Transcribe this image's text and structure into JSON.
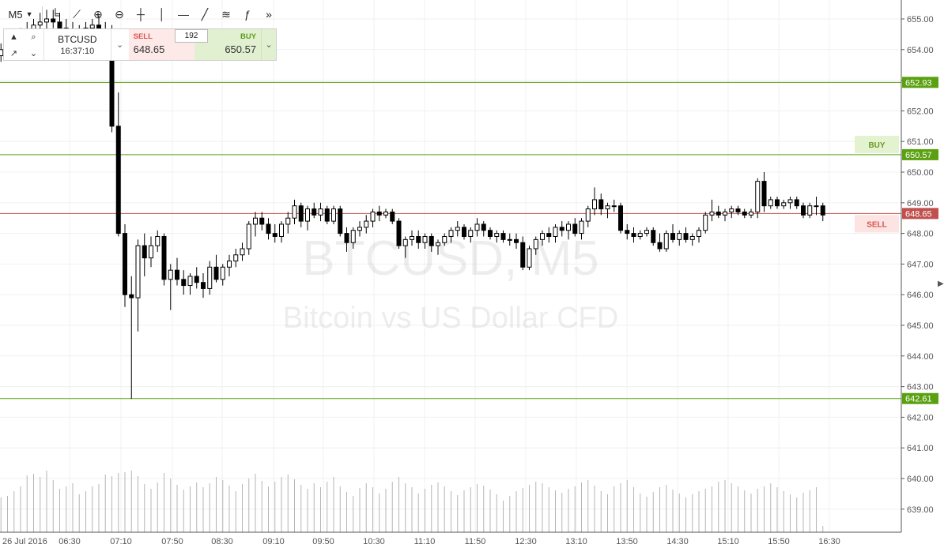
{
  "toolbar": {
    "interval": "M5",
    "tools": [
      {
        "name": "bar-style-icon",
        "glyph": "╘"
      },
      {
        "name": "indicators-icon",
        "glyph": "⟋"
      },
      {
        "name": "zoom-in-icon",
        "glyph": "⊕"
      },
      {
        "name": "zoom-out-icon",
        "glyph": "⊖"
      },
      {
        "name": "crosshair-icon",
        "glyph": "┼"
      },
      {
        "name": "vertical-line-icon",
        "glyph": "│"
      },
      {
        "name": "horizontal-line-icon",
        "glyph": "—"
      },
      {
        "name": "trend-line-icon",
        "glyph": "╱"
      },
      {
        "name": "fibonacci-icon",
        "glyph": "≋"
      },
      {
        "name": "function-icon",
        "glyph": "ƒ"
      },
      {
        "name": "fast-forward-icon",
        "glyph": "»"
      }
    ]
  },
  "trade_panel": {
    "symbol": "BTCUSD",
    "time": "16:37:10",
    "sell_label": "SELL",
    "sell_price": "648.65",
    "buy_label": "BUY",
    "buy_price": "650.57",
    "quantity": "192"
  },
  "watermark": {
    "line1": "BTCUSD, M5",
    "line2": "Bitcoin vs US Dollar CFD"
  },
  "chart_data": {
    "type": "candlestick",
    "symbol": "BTCUSD",
    "timeframe": "M5",
    "ylim": [
      638.6,
      655.4
    ],
    "y_ticks": [
      "655.00",
      "654.00",
      "653.00",
      "652.00",
      "651.00",
      "650.00",
      "649.00",
      "648.00",
      "647.00",
      "646.00",
      "645.00",
      "644.00",
      "643.00",
      "642.00",
      "641.00",
      "640.00",
      "639.00"
    ],
    "x_tick_labels": [
      "26 Jul 2016",
      "06:30",
      "07:10",
      "07:50",
      "08:30",
      "09:10",
      "09:50",
      "10:30",
      "11:10",
      "11:50",
      "12:30",
      "13:10",
      "13:50",
      "14:30",
      "15:10",
      "15:50",
      "16:30"
    ],
    "horizontal_lines": [
      {
        "price": 652.93,
        "label": "652.93",
        "color": "#5aa010"
      },
      {
        "price": 650.57,
        "label": "650.57",
        "color": "#5aa010",
        "tag": "BUY"
      },
      {
        "price": 648.65,
        "label": "648.65",
        "color": "#c0504d",
        "tag": "SELL"
      },
      {
        "price": 642.61,
        "label": "642.61",
        "color": "#5aa010"
      }
    ],
    "candles": [
      [
        654.8,
        655.1,
        653.9,
        654.2
      ],
      [
        654.2,
        654.5,
        653.5,
        653.8
      ],
      [
        653.8,
        654.1,
        653.3,
        653.5
      ],
      [
        653.5,
        653.9,
        653.1,
        653.6
      ],
      [
        653.6,
        654.0,
        653.4,
        653.8
      ],
      [
        653.8,
        654.2,
        653.6,
        654.0
      ],
      [
        654.0,
        654.4,
        653.8,
        654.1
      ],
      [
        654.1,
        654.5,
        653.9,
        654.3
      ],
      [
        654.3,
        654.7,
        654.1,
        654.5
      ],
      [
        654.5,
        654.9,
        654.2,
        654.6
      ],
      [
        654.6,
        655.0,
        654.3,
        654.8
      ],
      [
        654.8,
        655.2,
        654.4,
        654.9
      ],
      [
        654.9,
        655.3,
        654.6,
        655.0
      ],
      [
        655.0,
        655.3,
        654.7,
        654.9
      ],
      [
        654.9,
        655.2,
        654.5,
        654.7
      ],
      [
        654.7,
        655.0,
        654.3,
        654.6
      ],
      [
        654.6,
        654.9,
        654.2,
        654.4
      ],
      [
        654.4,
        654.8,
        654.1,
        654.5
      ],
      [
        654.5,
        654.9,
        654.2,
        654.7
      ],
      [
        654.7,
        655.0,
        654.4,
        654.8
      ],
      [
        654.8,
        655.1,
        654.4,
        654.6
      ],
      [
        654.6,
        654.9,
        654.0,
        654.3
      ],
      [
        654.3,
        654.8,
        651.3,
        651.5
      ],
      [
        651.5,
        652.6,
        647.9,
        648.0
      ],
      [
        648.0,
        648.3,
        645.6,
        646.0
      ],
      [
        646.0,
        646.6,
        642.6,
        645.9
      ],
      [
        645.9,
        647.8,
        644.8,
        647.6
      ],
      [
        647.6,
        648.0,
        646.6,
        647.2
      ],
      [
        647.2,
        647.9,
        646.9,
        647.6
      ],
      [
        647.6,
        648.1,
        647.4,
        647.9
      ],
      [
        647.9,
        648.0,
        646.3,
        646.5
      ],
      [
        646.5,
        647.0,
        645.5,
        646.8
      ],
      [
        646.8,
        647.2,
        646.3,
        646.5
      ],
      [
        646.5,
        646.8,
        646.0,
        646.3
      ],
      [
        646.3,
        646.7,
        646.0,
        646.6
      ],
      [
        646.6,
        646.9,
        646.2,
        646.4
      ],
      [
        646.4,
        646.7,
        645.9,
        646.2
      ],
      [
        646.2,
        647.1,
        646.0,
        646.9
      ],
      [
        646.9,
        647.3,
        646.4,
        646.5
      ],
      [
        646.5,
        647.0,
        646.3,
        646.9
      ],
      [
        646.9,
        647.3,
        646.6,
        647.1
      ],
      [
        647.1,
        647.5,
        646.9,
        647.3
      ],
      [
        647.3,
        647.7,
        647.1,
        647.5
      ],
      [
        647.5,
        648.4,
        647.3,
        648.3
      ],
      [
        648.3,
        648.7,
        647.9,
        648.5
      ],
      [
        648.5,
        648.7,
        648.1,
        648.3
      ],
      [
        648.3,
        648.5,
        647.8,
        648.0
      ],
      [
        648.0,
        648.3,
        647.7,
        647.9
      ],
      [
        647.9,
        648.4,
        647.7,
        648.3
      ],
      [
        648.3,
        648.7,
        648.0,
        648.5
      ],
      [
        648.5,
        649.1,
        648.3,
        648.9
      ],
      [
        648.9,
        649.0,
        648.2,
        648.4
      ],
      [
        648.4,
        648.9,
        648.1,
        648.8
      ],
      [
        648.8,
        649.0,
        648.5,
        648.6
      ],
      [
        648.6,
        649.0,
        648.4,
        648.8
      ],
      [
        648.8,
        648.9,
        648.3,
        648.4
      ],
      [
        648.4,
        648.9,
        648.3,
        648.8
      ],
      [
        648.8,
        648.9,
        647.9,
        648.0
      ],
      [
        648.0,
        648.2,
        647.4,
        647.7
      ],
      [
        647.7,
        648.2,
        647.5,
        648.1
      ],
      [
        648.1,
        648.4,
        647.9,
        648.2
      ],
      [
        648.2,
        648.6,
        648.0,
        648.4
      ],
      [
        648.4,
        648.8,
        648.2,
        648.7
      ],
      [
        648.7,
        648.9,
        648.4,
        648.6
      ],
      [
        648.6,
        648.8,
        648.5,
        648.7
      ],
      [
        648.7,
        648.8,
        648.3,
        648.4
      ],
      [
        648.4,
        648.5,
        647.5,
        647.6
      ],
      [
        647.6,
        647.9,
        647.2,
        647.8
      ],
      [
        647.8,
        648.1,
        647.6,
        647.9
      ],
      [
        647.9,
        648.1,
        647.5,
        647.7
      ],
      [
        647.7,
        648.0,
        647.5,
        647.9
      ],
      [
        647.9,
        648.0,
        647.4,
        647.6
      ],
      [
        647.6,
        647.8,
        647.3,
        647.7
      ],
      [
        647.7,
        648.0,
        647.6,
        647.9
      ],
      [
        647.9,
        648.2,
        647.7,
        648.1
      ],
      [
        648.1,
        648.4,
        647.9,
        648.2
      ],
      [
        648.2,
        648.3,
        647.8,
        647.9
      ],
      [
        647.9,
        648.2,
        647.7,
        648.1
      ],
      [
        648.1,
        648.5,
        647.9,
        648.3
      ],
      [
        648.3,
        648.4,
        647.9,
        648.1
      ],
      [
        648.1,
        648.2,
        647.8,
        647.9
      ],
      [
        647.9,
        648.1,
        647.7,
        648.0
      ],
      [
        648.0,
        648.1,
        647.7,
        647.8
      ],
      [
        647.8,
        648.0,
        647.6,
        647.8
      ],
      [
        647.8,
        648.0,
        647.5,
        647.7
      ],
      [
        647.7,
        647.9,
        646.8,
        646.9
      ],
      [
        646.9,
        647.6,
        646.8,
        647.5
      ],
      [
        647.5,
        647.9,
        647.3,
        647.8
      ],
      [
        647.8,
        648.1,
        647.6,
        648.0
      ],
      [
        648.0,
        648.2,
        647.7,
        647.9
      ],
      [
        647.9,
        648.3,
        647.7,
        648.2
      ],
      [
        648.2,
        648.4,
        647.9,
        648.1
      ],
      [
        648.1,
        648.4,
        647.8,
        648.3
      ],
      [
        648.3,
        648.5,
        647.9,
        648.0
      ],
      [
        648.0,
        648.5,
        647.8,
        648.4
      ],
      [
        648.4,
        648.9,
        648.2,
        648.8
      ],
      [
        648.8,
        649.5,
        648.6,
        649.1
      ],
      [
        649.1,
        649.3,
        648.6,
        648.8
      ],
      [
        648.8,
        649.0,
        648.5,
        648.9
      ],
      [
        648.9,
        649.1,
        648.7,
        648.9
      ],
      [
        648.9,
        649.0,
        648.0,
        648.1
      ],
      [
        648.1,
        648.3,
        647.8,
        648.0
      ],
      [
        648.0,
        648.2,
        647.7,
        647.9
      ],
      [
        647.9,
        648.1,
        647.8,
        648.0
      ],
      [
        648.0,
        648.2,
        647.9,
        648.1
      ],
      [
        648.1,
        648.2,
        647.6,
        647.7
      ],
      [
        647.7,
        648.0,
        647.4,
        647.5
      ],
      [
        647.5,
        648.1,
        647.4,
        648.0
      ],
      [
        648.0,
        648.3,
        647.7,
        647.8
      ],
      [
        647.8,
        648.1,
        647.6,
        648.0
      ],
      [
        648.0,
        648.2,
        647.7,
        647.8
      ],
      [
        647.8,
        648.0,
        647.6,
        647.9
      ],
      [
        647.9,
        648.2,
        647.7,
        648.1
      ],
      [
        648.1,
        648.7,
        648.0,
        648.6
      ],
      [
        648.6,
        649.1,
        648.4,
        648.7
      ],
      [
        648.7,
        648.9,
        648.5,
        648.6
      ],
      [
        648.6,
        648.8,
        648.4,
        648.7
      ],
      [
        648.7,
        648.9,
        648.5,
        648.8
      ],
      [
        648.8,
        648.9,
        648.6,
        648.7
      ],
      [
        648.7,
        648.8,
        648.5,
        648.6
      ],
      [
        648.6,
        648.8,
        648.5,
        648.7
      ],
      [
        648.7,
        649.8,
        648.5,
        649.7
      ],
      [
        649.7,
        650.0,
        648.7,
        648.9
      ],
      [
        648.9,
        649.2,
        648.8,
        649.1
      ],
      [
        649.1,
        649.2,
        648.8,
        648.9
      ],
      [
        648.9,
        649.1,
        648.8,
        649.0
      ],
      [
        649.0,
        649.2,
        648.8,
        649.1
      ],
      [
        649.1,
        649.2,
        648.8,
        648.9
      ],
      [
        648.9,
        649.0,
        648.5,
        648.6
      ],
      [
        648.6,
        649.0,
        648.5,
        648.9
      ],
      [
        648.9,
        649.2,
        648.6,
        648.9
      ],
      [
        648.9,
        649.0,
        648.4,
        648.6
      ]
    ],
    "volumes": [
      42,
      40,
      48,
      43,
      51,
      40,
      44,
      46,
      52,
      58,
      72,
      74,
      70,
      78,
      66,
      55,
      58,
      62,
      48,
      52,
      58,
      61,
      73,
      71,
      75,
      76,
      78,
      71,
      61,
      55,
      63,
      75,
      68,
      60,
      54,
      58,
      63,
      57,
      62,
      70,
      66,
      59,
      52,
      61,
      68,
      74,
      65,
      58,
      64,
      70,
      73,
      67,
      60,
      55,
      62,
      57,
      64,
      70,
      58,
      51,
      46,
      56,
      62,
      57,
      49,
      55,
      64,
      70,
      62,
      57,
      49,
      55,
      60,
      63,
      58,
      52,
      47,
      53,
      57,
      61,
      59,
      54,
      48,
      40,
      46,
      52,
      56,
      60,
      64,
      62,
      57,
      53,
      50,
      55,
      58,
      63,
      66,
      59,
      52,
      48,
      58,
      62,
      66,
      57,
      49,
      45,
      51,
      57,
      60,
      54,
      49,
      44,
      48,
      52,
      55,
      58,
      64,
      66,
      62,
      58,
      53,
      49,
      55,
      58,
      62,
      57,
      52,
      48,
      44,
      50,
      53,
      57,
      8
    ]
  }
}
